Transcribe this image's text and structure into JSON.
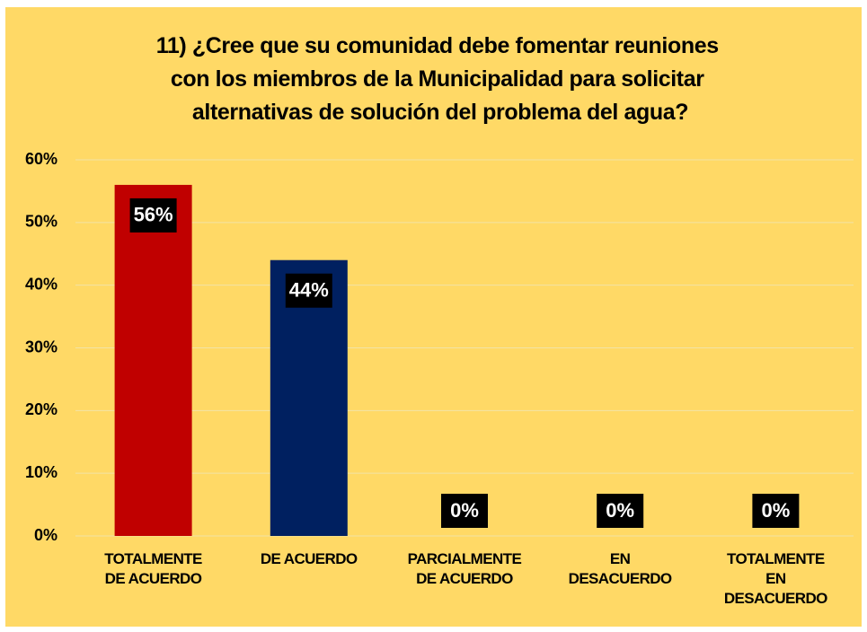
{
  "chart_data": {
    "type": "bar",
    "title": [
      "11)    ¿Cree que su comunidad debe fomentar reuniones",
      "con los miembros  de la Municipalidad para solicitar",
      "alternativas de solución del problema del agua?"
    ],
    "categories": [
      "TOTALMENTE\nDE ACUERDO",
      "DE ACUERDO",
      "PARCIALMENTE\nDE ACUERDO",
      "EN\nDESACUERDO",
      "TOTALMENTE\nEN\nDESACUERDO"
    ],
    "values": [
      56,
      44,
      0,
      0,
      0
    ],
    "value_labels": [
      "56%",
      "44%",
      "0%",
      "0%",
      "0%"
    ],
    "colors": [
      "#C00000",
      "#002060",
      "#7F7F7F",
      "#7F7F7F",
      "#7F7F7F"
    ],
    "ylim": [
      0,
      60
    ],
    "yticks": [
      {
        "value": 0,
        "label": "0%"
      },
      {
        "value": 10,
        "label": "10%"
      },
      {
        "value": 20,
        "label": "20%"
      },
      {
        "value": 30,
        "label": "30%"
      },
      {
        "value": 40,
        "label": "40%"
      },
      {
        "value": 50,
        "label": "50%"
      },
      {
        "value": 60,
        "label": "60%"
      }
    ],
    "grid": true
  }
}
